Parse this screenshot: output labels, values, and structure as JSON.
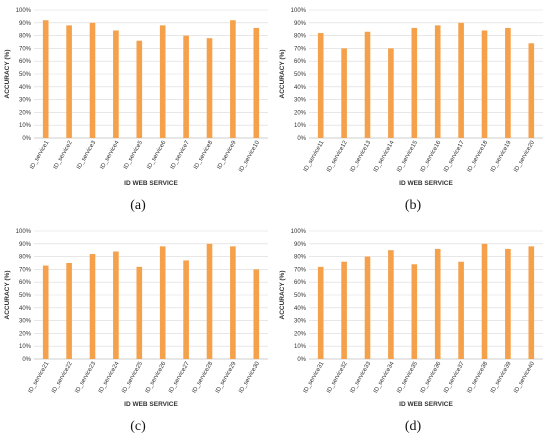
{
  "colors": {
    "bar": "#F5A04A",
    "grid": "#D9D9D9",
    "axis": "#BFBFBF"
  },
  "chart_data": [
    {
      "type": "bar",
      "caption": "(a)",
      "xlabel": "ID WEB SERVICE",
      "ylabel": "ACCURACY (%)",
      "ylim": [
        0,
        100
      ],
      "yticks": [
        "0%",
        "10%",
        "20%",
        "30%",
        "40%",
        "50%",
        "60%",
        "70%",
        "80%",
        "90%",
        "100%"
      ],
      "grid": true,
      "categories": [
        "ID_service1",
        "ID_service2",
        "ID_service3",
        "ID_service4",
        "ID_service5",
        "ID_service6",
        "ID_service7",
        "ID_service8",
        "ID_service9",
        "ID_service10"
      ],
      "values": [
        92,
        88,
        90,
        84,
        76,
        88,
        80,
        78,
        92,
        86
      ]
    },
    {
      "type": "bar",
      "caption": "(b)",
      "xlabel": "ID WEB SERVICE",
      "ylabel": "ACCURACY (%)",
      "ylim": [
        0,
        100
      ],
      "yticks": [
        "0%",
        "10%",
        "20%",
        "30%",
        "40%",
        "50%",
        "60%",
        "70%",
        "80%",
        "90%",
        "100%"
      ],
      "grid": true,
      "categories": [
        "ID_service11",
        "ID_service12",
        "ID_service13",
        "ID_service14",
        "ID_service15",
        "ID_service16",
        "ID_service17",
        "ID_service18",
        "ID_service19",
        "ID_service20"
      ],
      "values": [
        82,
        70,
        83,
        70,
        86,
        88,
        90,
        84,
        86,
        74
      ]
    },
    {
      "type": "bar",
      "caption": "(c)",
      "xlabel": "ID WEB SERVICE",
      "ylabel": "ACCURACY (%)",
      "ylim": [
        0,
        100
      ],
      "yticks": [
        "0%",
        "10%",
        "20%",
        "30%",
        "40%",
        "50%",
        "60%",
        "70%",
        "80%",
        "90%",
        "100%"
      ],
      "grid": true,
      "categories": [
        "ID_service21",
        "ID_service22",
        "ID_service23",
        "ID_service24",
        "ID_service25",
        "ID_service26",
        "ID_service27",
        "ID_service28",
        "ID_service29",
        "ID_service30"
      ],
      "values": [
        73,
        75,
        82,
        84,
        72,
        88,
        77,
        90,
        88,
        70
      ]
    },
    {
      "type": "bar",
      "caption": "(d)",
      "xlabel": "ID WEB SERVICE",
      "ylabel": "ACCURACY (%)",
      "ylim": [
        0,
        100
      ],
      "yticks": [
        "0%",
        "10%",
        "20%",
        "30%",
        "40%",
        "50%",
        "60%",
        "70%",
        "80%",
        "90%",
        "100%"
      ],
      "grid": true,
      "categories": [
        "ID_service31",
        "ID_service32",
        "ID_service33",
        "ID_service34",
        "ID_service35",
        "ID_service36",
        "ID_service37",
        "ID_service38",
        "ID_service39",
        "ID_service40"
      ],
      "values": [
        72,
        76,
        80,
        85,
        74,
        86,
        76,
        90,
        86,
        88
      ]
    }
  ]
}
